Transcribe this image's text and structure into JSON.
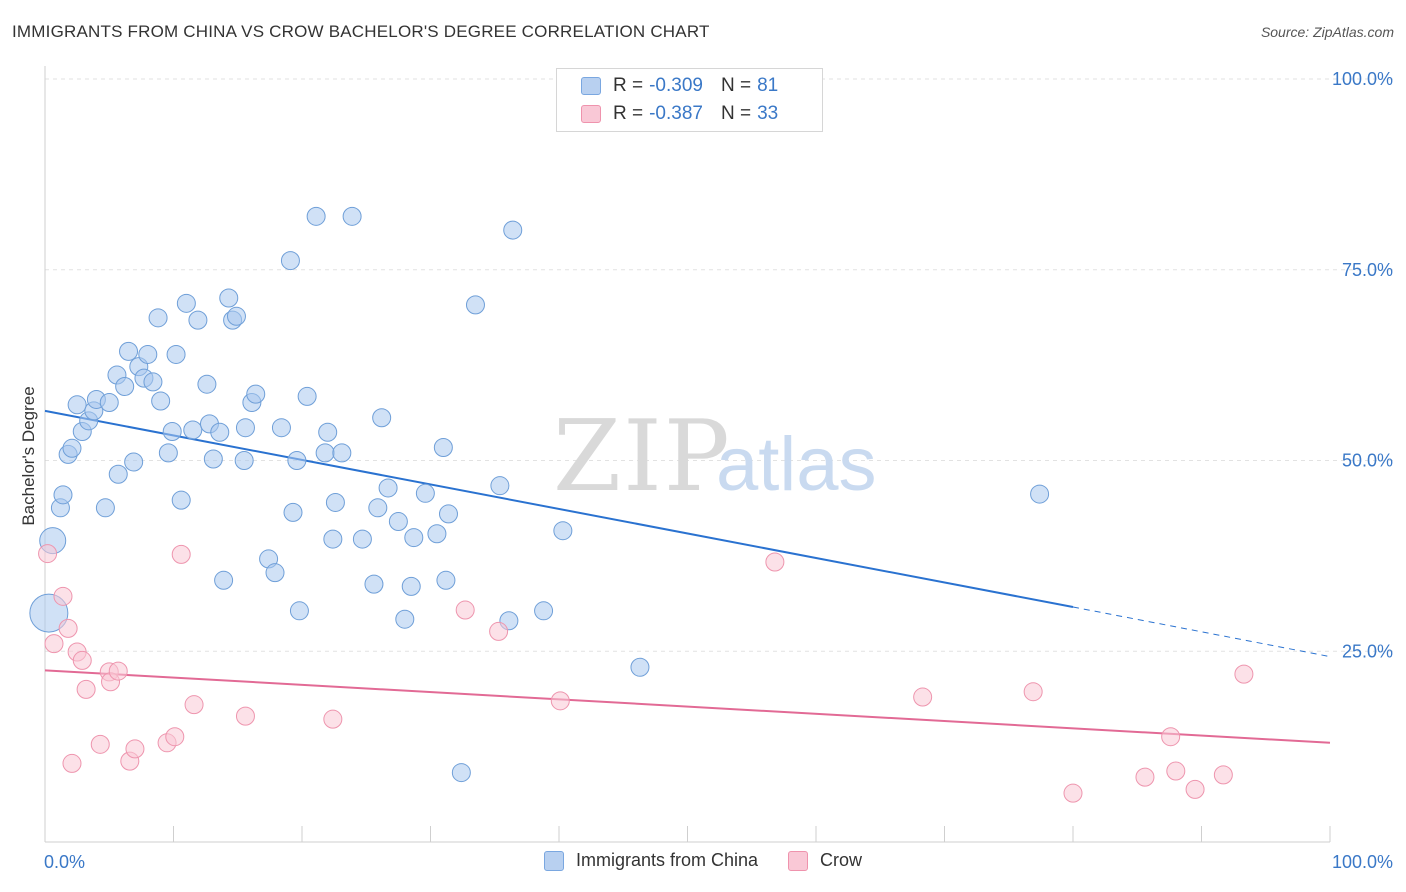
{
  "header": {
    "title": "IMMIGRANTS FROM CHINA VS CROW BACHELOR'S DEGREE CORRELATION CHART",
    "source": "Source: ZipAtlas.com"
  },
  "watermark": {
    "zip": "ZIP",
    "atlas": "atlas"
  },
  "legend": {
    "rows": [
      {
        "r_label": "R = ",
        "r_value": "-0.309",
        "n_label": "N = ",
        "n_value": "81",
        "color": "#b8d0f0",
        "border": "#7aa7e0"
      },
      {
        "r_label": "R = ",
        "r_value": "-0.387",
        "n_label": "N = ",
        "n_value": "33",
        "color": "#f9c8d6",
        "border": "#ef93ad"
      }
    ]
  },
  "bottom_legend": {
    "items": [
      {
        "label": "Immigrants from China",
        "color": "#b8d0f0",
        "border": "#7aa7e0"
      },
      {
        "label": "Crow",
        "color": "#f9c8d6",
        "border": "#ef93ad"
      }
    ]
  },
  "chart_data": {
    "type": "scatter",
    "title": "IMMIGRANTS FROM CHINA VS CROW BACHELOR'S DEGREE CORRELATION CHART",
    "xlabel": "",
    "ylabel": "Bachelor's Degree",
    "xlim": [
      0,
      100
    ],
    "ylim": [
      0,
      100
    ],
    "x_tick_labels": [
      "0.0%",
      "100.0%"
    ],
    "y_ticks": [
      25,
      50,
      75,
      100
    ],
    "y_tick_labels": [
      "25.0%",
      "50.0%",
      "75.0%",
      "100.0%"
    ],
    "grid": true,
    "legend_position": "top-center",
    "series": [
      {
        "name": "Immigrants from China",
        "color": "#a9c8ef",
        "stroke": "#6f9fd8",
        "line_color": "#2a72d0",
        "trend": {
          "x0": 0,
          "y0": 56.5,
          "x1": 80,
          "y1": 30.8,
          "dash_to_x": 100,
          "dash_to_y": 24.3
        },
        "points": [
          [
            0.3,
            30.0
          ],
          [
            0.6,
            39.5
          ],
          [
            1.2,
            43.8
          ],
          [
            1.4,
            45.5
          ],
          [
            1.8,
            50.8
          ],
          [
            2.1,
            51.6
          ],
          [
            2.5,
            57.3
          ],
          [
            2.9,
            53.8
          ],
          [
            3.4,
            55.2
          ],
          [
            3.8,
            56.5
          ],
          [
            4.0,
            58.0
          ],
          [
            4.7,
            43.8
          ],
          [
            5.0,
            57.6
          ],
          [
            5.6,
            61.2
          ],
          [
            5.7,
            48.2
          ],
          [
            6.2,
            59.7
          ],
          [
            6.5,
            64.3
          ],
          [
            6.9,
            49.8
          ],
          [
            7.3,
            62.3
          ],
          [
            7.7,
            60.8
          ],
          [
            8.0,
            63.9
          ],
          [
            8.4,
            60.3
          ],
          [
            8.8,
            68.7
          ],
          [
            9.0,
            57.8
          ],
          [
            9.6,
            51.0
          ],
          [
            9.9,
            53.8
          ],
          [
            10.2,
            63.9
          ],
          [
            10.6,
            44.8
          ],
          [
            11.0,
            70.6
          ],
          [
            11.5,
            54.0
          ],
          [
            11.9,
            68.4
          ],
          [
            12.6,
            60.0
          ],
          [
            12.8,
            54.8
          ],
          [
            13.1,
            50.2
          ],
          [
            13.6,
            53.7
          ],
          [
            13.9,
            34.3
          ],
          [
            14.3,
            71.3
          ],
          [
            14.6,
            68.4
          ],
          [
            14.9,
            68.9
          ],
          [
            15.5,
            50.0
          ],
          [
            15.6,
            54.3
          ],
          [
            16.1,
            57.6
          ],
          [
            16.4,
            58.7
          ],
          [
            17.4,
            37.1
          ],
          [
            17.9,
            35.3
          ],
          [
            18.4,
            54.3
          ],
          [
            19.1,
            76.2
          ],
          [
            19.3,
            43.2
          ],
          [
            19.6,
            50.0
          ],
          [
            19.8,
            30.3
          ],
          [
            20.4,
            58.4
          ],
          [
            21.1,
            82.0
          ],
          [
            21.8,
            51.0
          ],
          [
            22.0,
            53.7
          ],
          [
            22.4,
            39.7
          ],
          [
            22.6,
            44.5
          ],
          [
            23.1,
            51.0
          ],
          [
            23.9,
            82.0
          ],
          [
            24.7,
            39.7
          ],
          [
            25.6,
            33.8
          ],
          [
            25.9,
            43.8
          ],
          [
            26.2,
            55.6
          ],
          [
            26.7,
            46.4
          ],
          [
            27.5,
            42.0
          ],
          [
            28.0,
            29.2
          ],
          [
            28.5,
            33.5
          ],
          [
            28.7,
            39.9
          ],
          [
            29.6,
            45.7
          ],
          [
            30.5,
            40.4
          ],
          [
            31.0,
            51.7
          ],
          [
            31.2,
            34.3
          ],
          [
            31.4,
            43.0
          ],
          [
            32.4,
            9.1
          ],
          [
            33.5,
            70.4
          ],
          [
            35.4,
            46.7
          ],
          [
            36.1,
            29.0
          ],
          [
            36.4,
            80.2
          ],
          [
            38.8,
            30.3
          ],
          [
            40.3,
            40.8
          ],
          [
            46.3,
            22.9
          ],
          [
            77.4,
            45.6
          ]
        ]
      },
      {
        "name": "Crow",
        "color": "#f9c8d6",
        "stroke": "#ee95ae",
        "line_color": "#e26a95",
        "trend": {
          "x0": 0,
          "y0": 22.5,
          "x1": 100,
          "y1": 13.0
        },
        "points": [
          [
            0.2,
            37.8
          ],
          [
            0.7,
            26.0
          ],
          [
            1.4,
            32.2
          ],
          [
            1.8,
            28.0
          ],
          [
            2.1,
            10.3
          ],
          [
            2.5,
            24.9
          ],
          [
            2.9,
            23.8
          ],
          [
            3.2,
            20.0
          ],
          [
            4.3,
            12.8
          ],
          [
            5.0,
            22.3
          ],
          [
            5.1,
            21.0
          ],
          [
            5.7,
            22.4
          ],
          [
            6.6,
            10.6
          ],
          [
            7.0,
            12.2
          ],
          [
            9.5,
            13.0
          ],
          [
            10.1,
            13.8
          ],
          [
            10.6,
            37.7
          ],
          [
            11.6,
            18.0
          ],
          [
            15.6,
            16.5
          ],
          [
            22.4,
            16.1
          ],
          [
            32.7,
            30.4
          ],
          [
            35.3,
            27.6
          ],
          [
            40.1,
            18.5
          ],
          [
            56.8,
            36.7
          ],
          [
            68.3,
            19.0
          ],
          [
            76.9,
            19.7
          ],
          [
            80.0,
            6.4
          ],
          [
            85.6,
            8.5
          ],
          [
            87.6,
            13.8
          ],
          [
            88.0,
            9.3
          ],
          [
            89.5,
            6.9
          ],
          [
            91.7,
            8.8
          ],
          [
            93.3,
            22.0
          ]
        ]
      }
    ]
  }
}
